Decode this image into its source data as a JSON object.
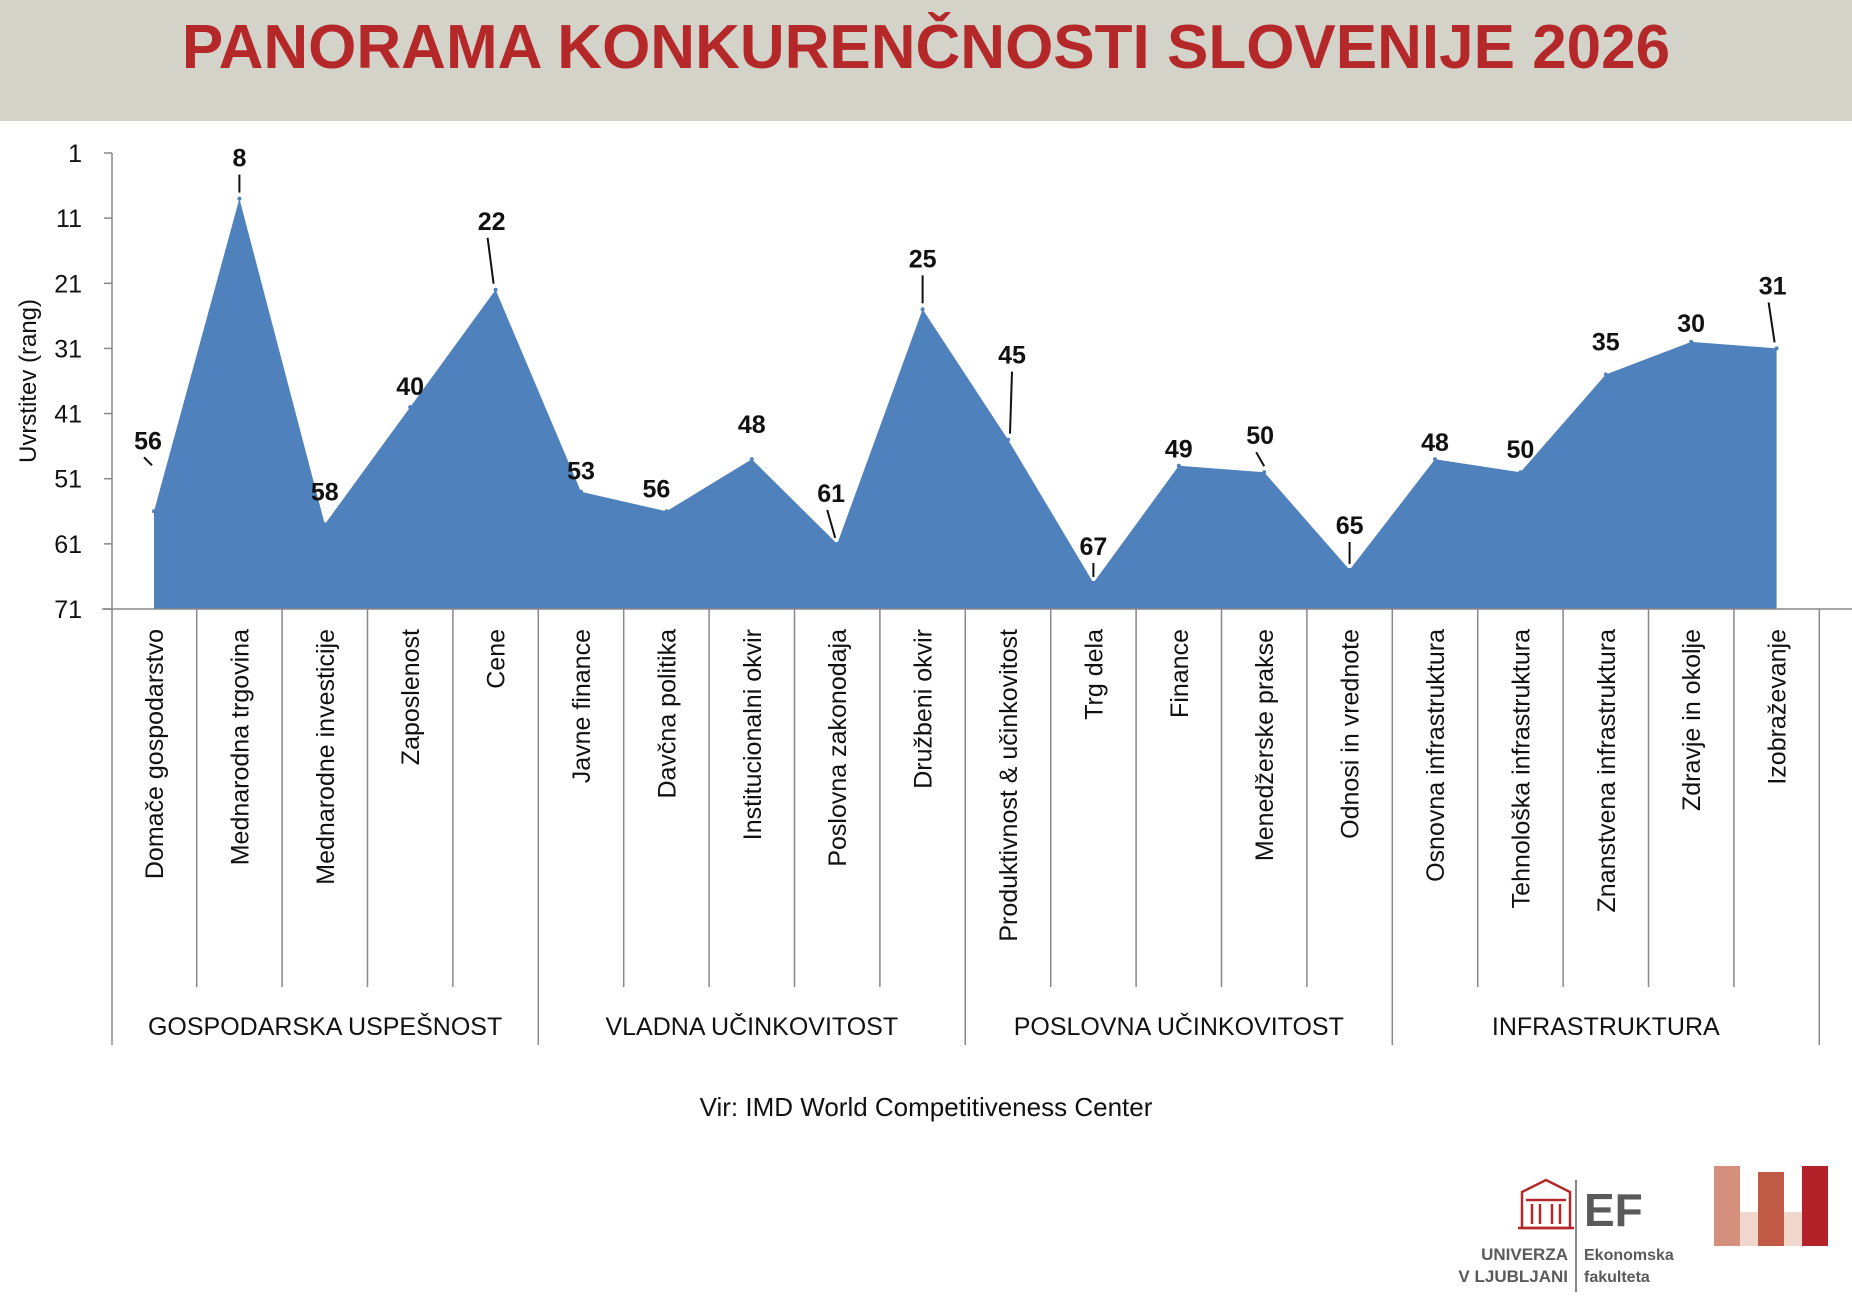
{
  "title": "PANORAMA KONKURENČNOSTI SLOVENIJE 2026",
  "source": "Vir: IMD World Competitiveness Center",
  "logos": {
    "university_line1": "UNIVERZA",
    "university_line2": "V LJUBLJANI",
    "faculty_abbr": "EF",
    "faculty_line1": "Ekonomska",
    "faculty_line2": "fakulteta"
  },
  "colors": {
    "title": "#b5282a",
    "header_bg": "#d4d3ca",
    "area_fill": "#4f81bd",
    "text": "#111111",
    "axis": "#888888"
  },
  "chart_data": {
    "type": "area",
    "ylabel": "Uvrstitev (rang)",
    "xlabel": "",
    "ylim": [
      71,
      1
    ],
    "y_inverted": true,
    "yticks": [
      1,
      11,
      21,
      31,
      41,
      51,
      61,
      71
    ],
    "grid": false,
    "legend": "none",
    "categories": [
      "Domače gospodarstvo",
      "Mednarodna trgovina",
      "Mednarodne investicije",
      "Zaposlenost",
      "Cene",
      "Javne finance",
      "Davčna politika",
      "Institucionalni okvir",
      "Poslovna zakonodaja",
      "Družbeni okvir",
      "Produktivnost & učinkovitost",
      "Trg dela",
      "Finance",
      "Menedžerske prakse",
      "Odnosi in vrednote",
      "Osnovna infrastruktura",
      "Tehnološka infrastruktura",
      "Znanstvena infrastruktura",
      "Zdravje in okolje",
      "Izobraževanje"
    ],
    "values": [
      56,
      8,
      58,
      40,
      22,
      53,
      56,
      48,
      61,
      25,
      45,
      67,
      49,
      50,
      65,
      48,
      50,
      35,
      30,
      31
    ],
    "groups": [
      {
        "label": "GOSPODARSKA USPEŠNOST",
        "count": 5
      },
      {
        "label": "VLADNA UČINKOVITOST",
        "count": 5
      },
      {
        "label": "POSLOVNA UČINKOVITOST",
        "count": 5
      },
      {
        "label": "INFRASTRUKTURA",
        "count": 5
      }
    ]
  }
}
